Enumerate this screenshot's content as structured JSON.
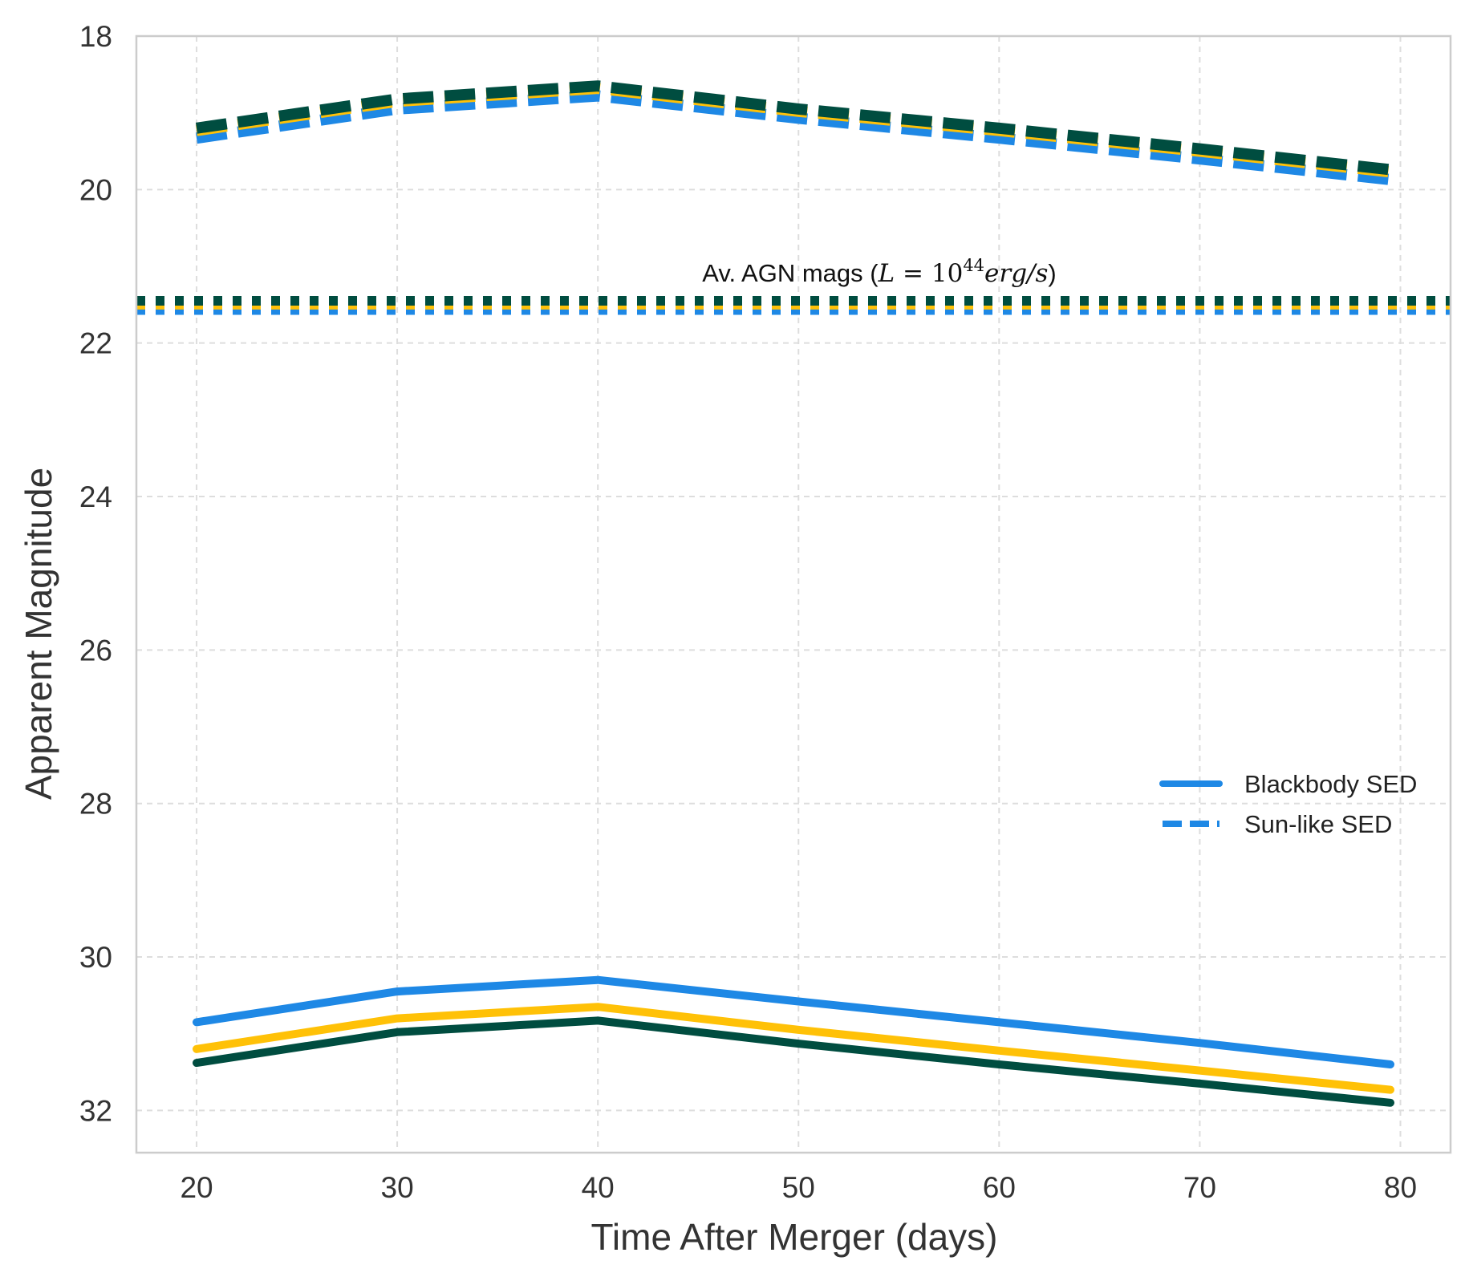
{
  "chart_data": {
    "type": "line",
    "title": "",
    "xlabel": "Time After Merger (days)",
    "ylabel": "Apparent Magnitude",
    "xlim": [
      17,
      82.5
    ],
    "ylim": [
      32.55,
      18
    ],
    "y_inverted": true,
    "xticks": [
      20,
      30,
      40,
      50,
      60,
      70,
      80
    ],
    "yticks": [
      18,
      20,
      22,
      24,
      26,
      28,
      30,
      32
    ],
    "grid": true,
    "grid_style": "dashed",
    "legend_placement": "center-right",
    "legend": [
      {
        "label": "Blackbody SED",
        "style": "solid",
        "color": "#1e88e5"
      },
      {
        "label": "Sun-like SED",
        "style": "dashed",
        "color": "#1e88e5"
      }
    ],
    "annotation": {
      "prefix": "Av. AGN mags (",
      "math_L": "L",
      "math_eq": " = 10",
      "math_exp": "44",
      "math_unit": "erg/s",
      "suffix": ")",
      "x": 45.2,
      "y": 21.2
    },
    "x": [
      20,
      30,
      40,
      50,
      60,
      70,
      79.5
    ],
    "series": [
      {
        "style": "solid",
        "color": "#1e88e5",
        "values": [
          30.85,
          30.45,
          30.3,
          30.58,
          30.85,
          31.12,
          31.4
        ]
      },
      {
        "style": "solid",
        "color": "#ffc107",
        "values": [
          31.2,
          30.8,
          30.65,
          30.95,
          31.22,
          31.48,
          31.73
        ]
      },
      {
        "style": "solid",
        "color": "#004d40",
        "values": [
          31.38,
          30.98,
          30.83,
          31.13,
          31.4,
          31.65,
          31.9
        ]
      },
      {
        "style": "dashed",
        "color": "#1e88e5",
        "values": [
          19.33,
          18.95,
          18.78,
          19.07,
          19.33,
          19.6,
          19.87
        ]
      },
      {
        "style": "dashed",
        "color": "#ffc107",
        "values": [
          19.23,
          18.85,
          18.68,
          18.98,
          19.23,
          19.5,
          19.77
        ]
      },
      {
        "style": "dashed",
        "color": "#004d40",
        "values": [
          19.2,
          18.82,
          18.65,
          18.95,
          19.2,
          19.47,
          19.74
        ]
      },
      {
        "style": "dotted",
        "color": "#1e88e5",
        "constant": 21.57
      },
      {
        "style": "dotted",
        "color": "#ffc107",
        "constant": 21.5
      },
      {
        "style": "dotted",
        "color": "#004d40",
        "constant": 21.45
      }
    ]
  }
}
